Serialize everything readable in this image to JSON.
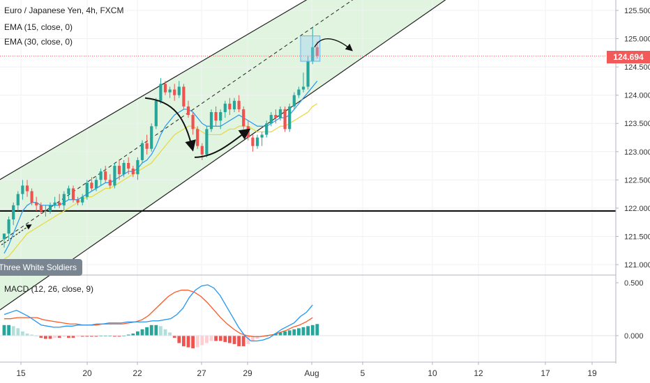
{
  "header": {
    "title": "Euro / Japanese Yen, 4h, FXCM",
    "indicators": [
      "EMA (15, close, 0)",
      "EMA (30, close, 0)"
    ]
  },
  "macd_label": "MACD (12, 26, close, 9)",
  "pattern_label": "Three White Soldiers",
  "last_price": "124.694",
  "colors": {
    "up": "#26a69a",
    "down": "#ef5350",
    "channel_fill": "#d6f0d6",
    "ema15": "#2196f3",
    "ema30": "#e8d83a",
    "macd_line": "#2196f3",
    "signal_line": "#ff5722",
    "price_line": "#f25a5a"
  },
  "chart_data": [
    {
      "type": "candlestick",
      "title": "Euro / Japanese Yen, 4h, FXCM",
      "ylim": [
        120.95,
        125.7
      ],
      "y_ticks": [
        "125.500",
        "125.000",
        "124.500",
        "124.000",
        "123.500",
        "123.000",
        "122.500",
        "122.000",
        "121.500",
        "121.000"
      ],
      "x_ticks": [
        "15",
        "20",
        "22",
        "27",
        "29",
        "Aug",
        "5",
        "10",
        "12",
        "17",
        "19"
      ],
      "horizontal_level": 121.95,
      "current_price": 124.694,
      "channel": {
        "upper": [
          {
            "x": "15",
            "y": 122.55
          },
          {
            "x": "Aug",
            "y": 125.75
          }
        ],
        "mid": [
          {
            "x": "15",
            "y": 121.45
          },
          {
            "x": "Aug",
            "y": 125.2
          }
        ],
        "lower": [
          {
            "x": "15",
            "y": 120.25
          },
          {
            "x": "Aug",
            "y": 124.05
          }
        ]
      },
      "candles": [
        [
          121.45,
          121.55,
          121.3,
          121.55
        ],
        [
          121.55,
          121.85,
          121.45,
          121.8
        ],
        [
          121.8,
          122.1,
          121.7,
          122.05
        ],
        [
          122.05,
          122.3,
          121.95,
          122.25
        ],
        [
          122.25,
          122.5,
          122.15,
          122.4
        ],
        [
          122.4,
          122.5,
          122.2,
          122.3
        ],
        [
          122.3,
          122.35,
          122.05,
          122.1
        ],
        [
          122.1,
          122.2,
          121.95,
          122.05
        ],
        [
          122.05,
          122.1,
          121.9,
          121.95
        ],
        [
          121.95,
          122.05,
          121.85,
          121.95
        ],
        [
          121.95,
          122.1,
          121.9,
          122.05
        ],
        [
          122.05,
          122.2,
          122.0,
          122.1
        ],
        [
          122.1,
          122.25,
          122.0,
          122.05
        ],
        [
          122.05,
          122.3,
          121.95,
          122.25
        ],
        [
          122.25,
          122.4,
          122.15,
          122.35
        ],
        [
          122.35,
          122.4,
          122.1,
          122.15
        ],
        [
          122.15,
          122.2,
          122.05,
          122.1
        ],
        [
          122.1,
          122.25,
          122.05,
          122.2
        ],
        [
          122.2,
          122.5,
          122.15,
          122.45
        ],
        [
          122.45,
          122.55,
          122.3,
          122.35
        ],
        [
          122.35,
          122.55,
          122.3,
          122.5
        ],
        [
          122.5,
          122.7,
          122.4,
          122.65
        ],
        [
          122.65,
          122.75,
          122.45,
          122.5
        ],
        [
          122.5,
          122.6,
          122.35,
          122.4
        ],
        [
          122.4,
          122.8,
          122.35,
          122.75
        ],
        [
          122.75,
          122.85,
          122.5,
          122.6
        ],
        [
          122.6,
          122.85,
          122.55,
          122.8
        ],
        [
          122.8,
          122.9,
          122.6,
          122.7
        ],
        [
          122.7,
          122.75,
          122.55,
          122.6
        ],
        [
          122.6,
          122.9,
          122.5,
          122.85
        ],
        [
          122.85,
          123.2,
          122.8,
          123.15
        ],
        [
          123.15,
          123.3,
          122.95,
          123.05
        ],
        [
          123.05,
          123.5,
          123.0,
          123.45
        ],
        [
          123.45,
          123.95,
          123.4,
          123.9
        ],
        [
          123.9,
          124.3,
          123.85,
          124.2
        ],
        [
          124.2,
          124.25,
          124.0,
          124.05
        ],
        [
          124.05,
          124.15,
          123.95,
          124.1
        ],
        [
          124.1,
          124.2,
          123.9,
          124.0
        ],
        [
          124.0,
          124.25,
          123.95,
          124.15
        ],
        [
          124.15,
          124.2,
          123.75,
          123.8
        ],
        [
          123.8,
          123.9,
          123.6,
          123.65
        ],
        [
          123.65,
          123.7,
          123.3,
          123.4
        ],
        [
          123.4,
          123.45,
          123.05,
          123.1
        ],
        [
          123.1,
          123.15,
          122.85,
          122.95
        ],
        [
          122.95,
          123.45,
          122.9,
          123.4
        ],
        [
          123.4,
          123.75,
          123.35,
          123.7
        ],
        [
          123.7,
          123.8,
          123.45,
          123.55
        ],
        [
          123.55,
          123.75,
          123.4,
          123.7
        ],
        [
          123.7,
          123.9,
          123.6,
          123.85
        ],
        [
          123.85,
          123.95,
          123.65,
          123.75
        ],
        [
          123.75,
          123.95,
          123.7,
          123.9
        ],
        [
          123.9,
          124.0,
          123.7,
          123.75
        ],
        [
          123.75,
          123.8,
          123.4,
          123.45
        ],
        [
          123.45,
          123.55,
          123.2,
          123.25
        ],
        [
          123.25,
          123.3,
          123.0,
          123.1
        ],
        [
          123.1,
          123.3,
          123.05,
          123.25
        ],
        [
          123.25,
          123.35,
          123.1,
          123.3
        ],
        [
          123.3,
          123.55,
          123.25,
          123.5
        ],
        [
          123.5,
          123.7,
          123.45,
          123.65
        ],
        [
          123.65,
          123.75,
          123.5,
          123.6
        ],
        [
          123.6,
          123.8,
          123.55,
          123.75
        ],
        [
          123.75,
          123.8,
          123.35,
          123.4
        ],
        [
          123.4,
          123.85,
          123.35,
          123.8
        ],
        [
          123.8,
          124.05,
          123.75,
          124.0
        ],
        [
          124.0,
          124.15,
          123.95,
          124.1
        ],
        [
          124.1,
          124.4,
          124.05,
          124.15
        ],
        [
          124.15,
          124.7,
          124.1,
          124.6
        ],
        [
          124.6,
          125.2,
          124.55,
          124.85
        ],
        [
          124.85,
          124.95,
          124.65,
          124.694
        ]
      ],
      "ema15": [
        121.2,
        121.35,
        121.55,
        121.75,
        121.95,
        122.05,
        122.1,
        122.1,
        122.05,
        122.05,
        122.05,
        122.05,
        122.05,
        122.1,
        122.15,
        122.15,
        122.15,
        122.2,
        122.25,
        122.3,
        122.35,
        122.4,
        122.45,
        122.45,
        122.5,
        122.55,
        122.6,
        122.65,
        122.65,
        122.7,
        122.8,
        122.85,
        122.95,
        123.1,
        123.3,
        123.45,
        123.55,
        123.65,
        123.7,
        123.75,
        123.75,
        123.7,
        123.6,
        123.5,
        123.45,
        123.45,
        123.45,
        123.45,
        123.5,
        123.55,
        123.6,
        123.65,
        123.6,
        123.55,
        123.5,
        123.45,
        123.45,
        123.45,
        123.5,
        123.55,
        123.6,
        123.6,
        123.65,
        123.75,
        123.85,
        123.95,
        124.05,
        124.15,
        124.25
      ],
      "ema30": [
        121.1,
        121.15,
        121.25,
        121.35,
        121.45,
        121.55,
        121.6,
        121.65,
        121.7,
        121.75,
        121.8,
        121.85,
        121.9,
        121.95,
        122.0,
        122.05,
        122.1,
        122.15,
        122.2,
        122.2,
        122.25,
        122.3,
        122.35,
        122.35,
        122.4,
        122.45,
        122.5,
        122.55,
        122.6,
        122.65,
        122.7,
        122.75,
        122.8,
        122.9,
        123.0,
        123.1,
        123.2,
        123.3,
        123.35,
        123.4,
        123.45,
        123.45,
        123.4,
        123.35,
        123.3,
        123.3,
        123.3,
        123.3,
        123.35,
        123.4,
        123.4,
        123.45,
        123.45,
        123.45,
        123.4,
        123.35,
        123.35,
        123.35,
        123.35,
        123.4,
        123.45,
        123.45,
        123.5,
        123.55,
        123.6,
        123.65,
        123.7,
        123.8,
        123.85
      ]
    },
    {
      "type": "macd",
      "title": "MACD (12, 26, close, 9)",
      "ylim": [
        -0.35,
        0.55
      ],
      "y_ticks": [
        "0.500",
        "0.000"
      ],
      "macd": [
        0.2,
        0.22,
        0.24,
        0.21,
        0.18,
        0.14,
        0.1,
        0.09,
        0.08,
        0.08,
        0.09,
        0.09,
        0.1,
        0.1,
        0.1,
        0.11,
        0.11,
        0.12,
        0.12,
        0.12,
        0.13,
        0.13,
        0.13,
        0.13,
        0.14,
        0.14,
        0.15,
        0.16,
        0.2,
        0.26,
        0.36,
        0.43,
        0.47,
        0.48,
        0.45,
        0.38,
        0.28,
        0.18,
        0.08,
        0.0,
        -0.05,
        -0.05,
        -0.04,
        -0.02,
        0.02,
        0.06,
        0.09,
        0.12,
        0.18,
        0.22,
        0.29
      ],
      "signal": [
        0.16,
        0.16,
        0.17,
        0.17,
        0.17,
        0.17,
        0.15,
        0.14,
        0.13,
        0.12,
        0.11,
        0.11,
        0.1,
        0.1,
        0.1,
        0.11,
        0.11,
        0.11,
        0.11,
        0.12,
        0.13,
        0.15,
        0.19,
        0.25,
        0.31,
        0.37,
        0.41,
        0.43,
        0.43,
        0.41,
        0.37,
        0.31,
        0.24,
        0.17,
        0.11,
        0.06,
        0.02,
        0.0,
        -0.01,
        -0.01,
        0.0,
        0.01,
        0.03,
        0.05,
        0.08,
        0.1,
        0.13,
        0.17
      ],
      "histogram": [
        0.1,
        0.1,
        0.09,
        0.07,
        0.04,
        0.02,
        0.01,
        0.0,
        -0.02,
        -0.03,
        -0.03,
        -0.02,
        -0.02,
        -0.01,
        -0.02,
        -0.02,
        -0.01,
        -0.01,
        -0.01,
        -0.01,
        -0.01,
        0.0,
        0.0,
        0.0,
        -0.01,
        -0.01,
        0.0,
        0.01,
        0.02,
        0.04,
        0.06,
        0.08,
        0.1,
        0.1,
        0.09,
        0.06,
        0.03,
        -0.02,
        -0.07,
        -0.1,
        -0.11,
        -0.12,
        -0.11,
        -0.09,
        -0.07,
        -0.05,
        -0.05,
        -0.05,
        -0.06,
        -0.07,
        -0.08,
        -0.1,
        -0.1,
        -0.08,
        -0.05,
        -0.03,
        -0.01,
        0.0,
        0.01,
        0.02,
        0.03,
        0.04,
        0.05,
        0.06,
        0.07,
        0.08,
        0.09,
        0.1,
        0.11
      ]
    }
  ]
}
